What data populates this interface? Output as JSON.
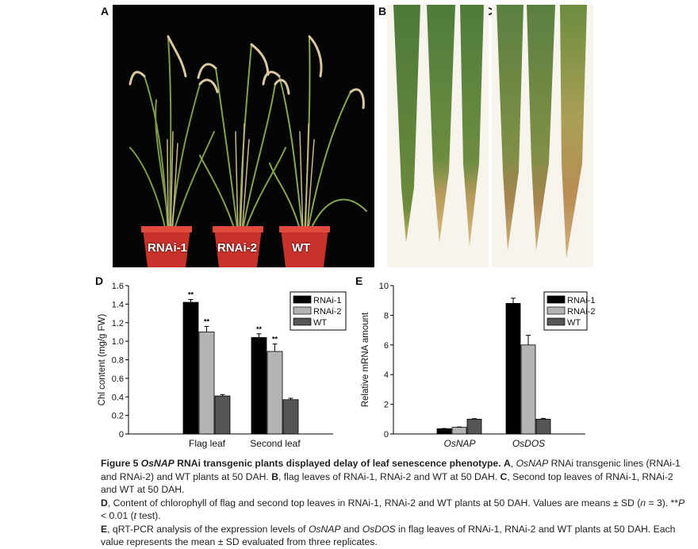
{
  "panels": {
    "a": "A",
    "b": "B",
    "c": "C",
    "d": "D",
    "e": "E"
  },
  "photoA": {
    "pot_labels": [
      "RNAi-1",
      "RNAi-2",
      "WT"
    ]
  },
  "chart_data": [
    {
      "id": "D",
      "type": "bar",
      "ylabel": "Chl content (mg/g FW)",
      "xlabel": "",
      "ylim": [
        0,
        1.6
      ],
      "yticks": [
        "0",
        "0.2",
        "0.4",
        "0.6",
        "0.8",
        "1.0",
        "1.2",
        "1.4",
        "1.6"
      ],
      "categories": [
        "Flag leaf",
        "Second leaf"
      ],
      "series": [
        {
          "name": "RNAi-1",
          "color": "#000000",
          "values": [
            1.42,
            1.04
          ],
          "errors": [
            0.03,
            0.04
          ],
          "stars": [
            "**",
            "**"
          ]
        },
        {
          "name": "RNAi-2",
          "color": "#b3b3b3",
          "values": [
            1.1,
            0.89
          ],
          "errors": [
            0.06,
            0.08
          ],
          "stars": [
            "**",
            "**"
          ]
        },
        {
          "name": "WT",
          "color": "#555555",
          "values": [
            0.41,
            0.37
          ],
          "errors": [
            0.015,
            0.015
          ],
          "stars": [
            "",
            ""
          ]
        }
      ],
      "legend_position": "top-right"
    },
    {
      "id": "E",
      "type": "bar",
      "ylabel": "Relative mRNA amount",
      "xlabel": "",
      "ylim": [
        0,
        10
      ],
      "yticks": [
        "0",
        "2",
        "4",
        "6",
        "8",
        "10"
      ],
      "categories": [
        "OsNAP",
        "OsDOS"
      ],
      "series": [
        {
          "name": "RNAi-1",
          "color": "#000000",
          "values": [
            0.35,
            8.8
          ],
          "errors": [
            0.02,
            0.35
          ],
          "stars": [
            "",
            ""
          ]
        },
        {
          "name": "RNAi-2",
          "color": "#b3b3b3",
          "values": [
            0.45,
            6.0
          ],
          "errors": [
            0.02,
            0.65
          ],
          "stars": [
            "",
            ""
          ]
        },
        {
          "name": "WT",
          "color": "#555555",
          "values": [
            1.0,
            1.0
          ],
          "errors": [
            0.03,
            0.05
          ],
          "stars": [
            "",
            ""
          ]
        }
      ],
      "legend_position": "top-right"
    }
  ],
  "caption": {
    "fig_label": "Figure 5",
    "title_gene": "OsNAP",
    "title_rest": " RNAi transgenic plants displayed delay of leaf senescence phenotype.",
    "a_label": "A",
    "a_gene": "OsNAP",
    "a_text": " RNAi transgenic lines (RNAi-1 and RNAi-2) and WT plants at 50 DAH.",
    "b_label": "B",
    "b_text": ", flag leaves of RNAi-1, RNAi-2 and WT at 50 DAH.",
    "c_label": "C",
    "c_text": ", Second top leaves of RNAi-1, RNAi-2 and WT at 50 DAH.",
    "d_label": "D",
    "d_text1": ", Content of chlorophyll of flag and second top leaves in RNAi-1, RNAi-2 and WT plants at 50 DAH. Values are means ± SD (",
    "d_n": "n",
    "d_text2": " = 3). **",
    "d_p": "P",
    "d_text3": " < 0.01 (",
    "d_t": "t",
    "d_text4": " test).",
    "e_label": "E",
    "e_text1": ", qRT-PCR analysis of the expression levels of ",
    "e_gene1": "OsNAP",
    "e_text2": " and ",
    "e_gene2": "OsDOS",
    "e_text3": " in flag leaves of RNAi-1, RNAi-2 and WT plants at 50 DAH. Each value represents the mean ± SD evaluated from three replicates."
  }
}
